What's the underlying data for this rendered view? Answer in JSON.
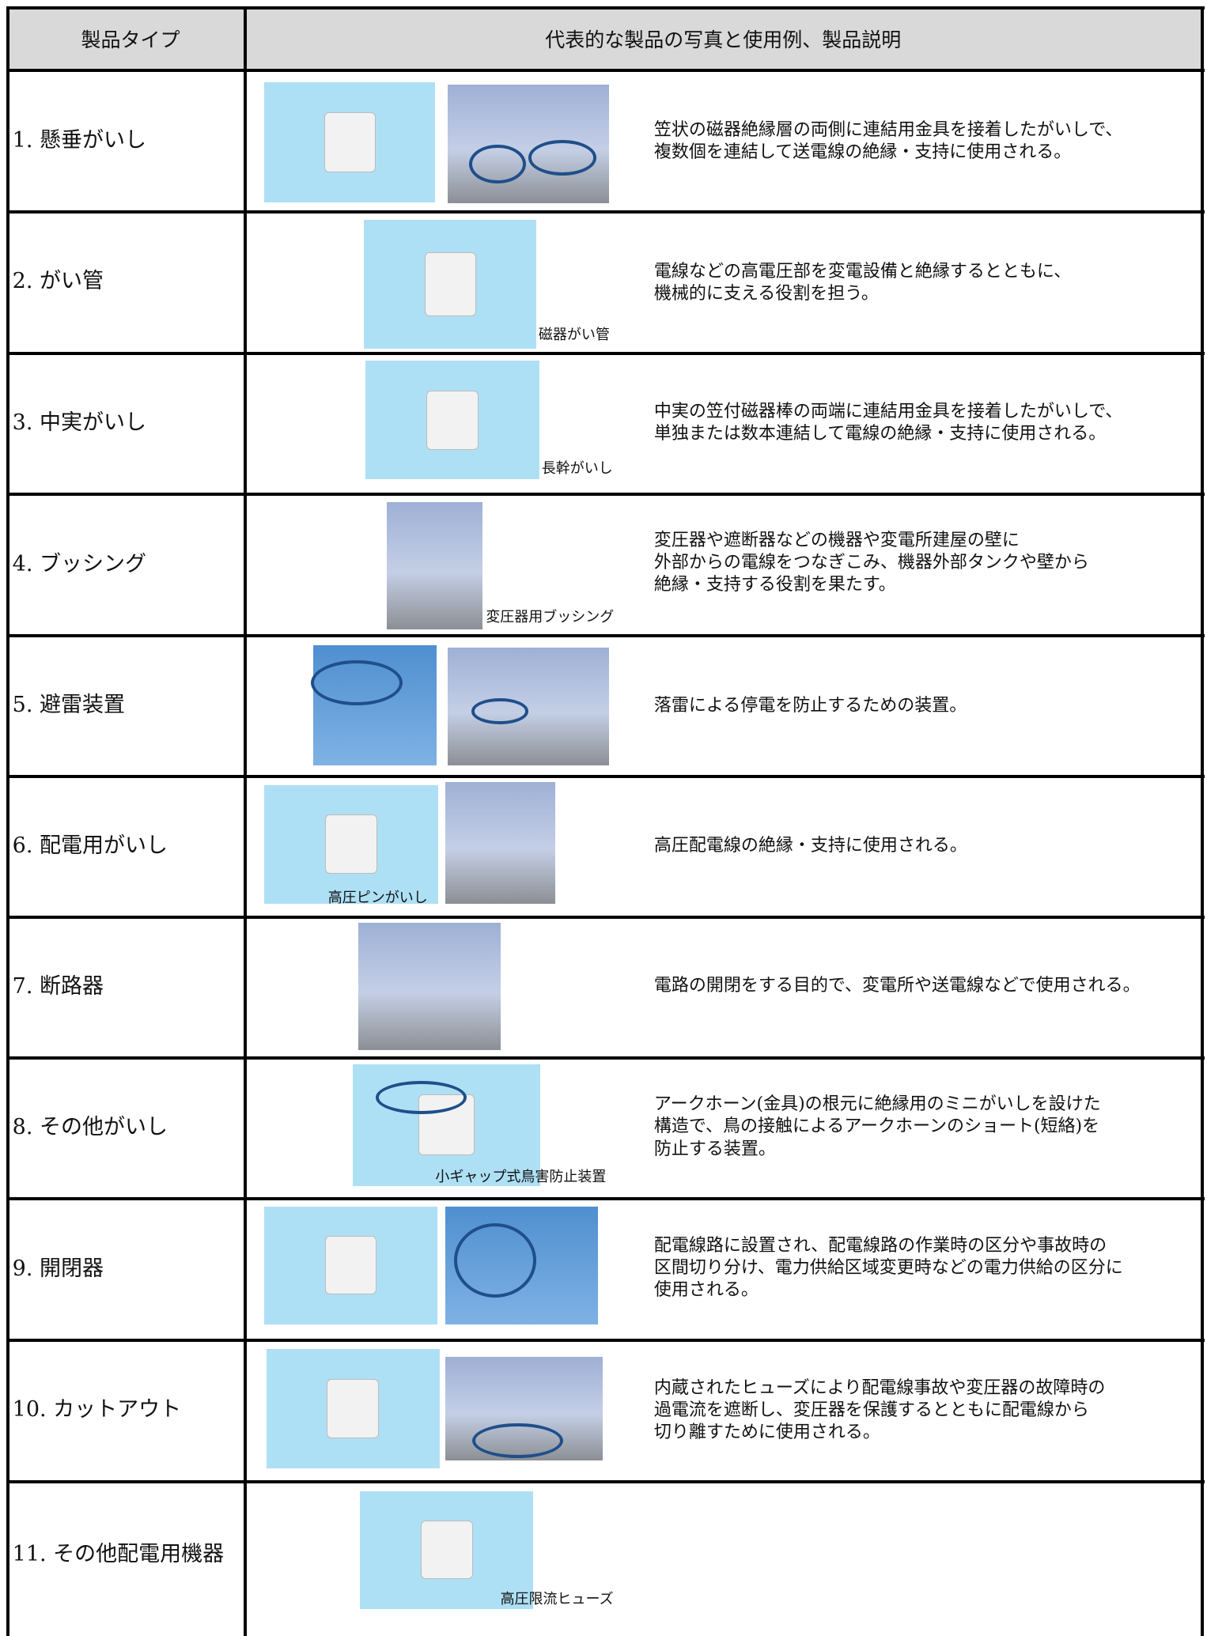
{
  "header": {
    "columns": [
      "製品タイプ",
      "代表的な製品の写真と使用例、製品説明"
    ]
  },
  "rows": [
    {
      "type": "1.  懸垂がいし",
      "captions": [],
      "description": [
        "笠状の磁器絶縁層の両側に連結用金具を接着したがいしで、",
        "複数個を連結して送電線の絶縁・支持に使用される。"
      ]
    },
    {
      "type": "2.  がい管",
      "captions": [
        "磁器がい管"
      ],
      "description": [
        "電線などの高電圧部を変電設備と絶縁するとともに、",
        "機械的に支える役割を担う。"
      ]
    },
    {
      "type": "3.  中実がいし",
      "captions": [
        "長幹がいし"
      ],
      "description": [
        "中実の笠付磁器棒の両端に連結用金具を接着したがいしで、",
        "単独または数本連結して電線の絶縁・支持に使用される。"
      ]
    },
    {
      "type": "4.  ブッシング",
      "captions": [
        "変圧器用ブッシング"
      ],
      "description": [
        "変圧器や遮断器などの機器や変電所建屋の壁に",
        "外部からの電線をつなぎこみ、機器外部タンクや壁から",
        "絶縁・支持する役割を果たす。"
      ]
    },
    {
      "type": "5.  避雷装置",
      "captions": [],
      "description": [
        "落雷による停電を防止するための装置。"
      ]
    },
    {
      "type": "6.  配電用がいし",
      "captions": [
        "高圧ピンがいし"
      ],
      "description": [
        "高圧配電線の絶縁・支持に使用される。"
      ]
    },
    {
      "type": "7.  断路器",
      "captions": [],
      "description": [
        "電路の開閉をする目的で、変電所や送電線などで使用される。"
      ]
    },
    {
      "type": "8.  その他がいし",
      "captions": [
        "小ギャップ式鳥害防止装置"
      ],
      "description": [
        "アークホーン(金具)の根元に絶縁用のミニがいしを設けた",
        "構造で、鳥の接触によるアークホーンのショート(短絡)を",
        "防止する装置。"
      ]
    },
    {
      "type": "9.  開閉器",
      "captions": [],
      "description": [
        "配電線路に設置され、配電線路の作業時の区分や事故時の",
        "区間切り分け、電力供給区域変更時などの電力供給の区分に",
        "使用される。"
      ]
    },
    {
      "type": "10. カットアウト",
      "captions": [],
      "description": [
        "内蔵されたヒューズにより配電線事故や変圧器の故障時の",
        "過電流を遮断し、変圧器を保護するとともに配電線から",
        "切り離すために使用される。"
      ]
    },
    {
      "type": "11. その他配電用機器",
      "captions": [
        "高圧限流ヒューズ"
      ],
      "description": []
    }
  ]
}
